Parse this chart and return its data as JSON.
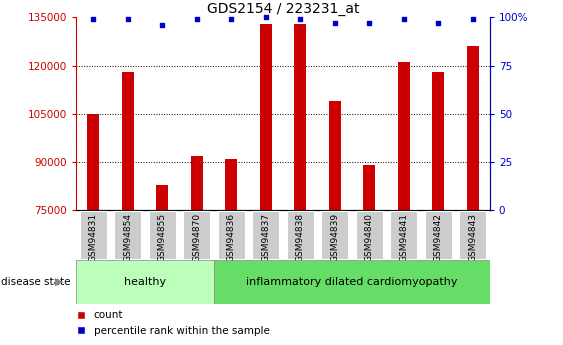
{
  "title": "GDS2154 / 223231_at",
  "samples": [
    "GSM94831",
    "GSM94854",
    "GSM94855",
    "GSM94870",
    "GSM94836",
    "GSM94837",
    "GSM94838",
    "GSM94839",
    "GSM94840",
    "GSM94841",
    "GSM94842",
    "GSM94843"
  ],
  "counts": [
    105000,
    118000,
    83000,
    92000,
    91000,
    133000,
    133000,
    109000,
    89000,
    121000,
    118000,
    126000
  ],
  "percentile_ranks": [
    99,
    99,
    96,
    99,
    99,
    100,
    99,
    97,
    97,
    99,
    97,
    99
  ],
  "bar_color": "#cc0000",
  "dot_color": "#0000cc",
  "ylim_left": [
    75000,
    135000
  ],
  "ylim_right": [
    0,
    100
  ],
  "yticks_left": [
    75000,
    90000,
    105000,
    120000,
    135000
  ],
  "yticks_right": [
    0,
    25,
    50,
    75,
    100
  ],
  "ytick_labels_right": [
    "0",
    "25",
    "50",
    "75",
    "100%"
  ],
  "healthy_count": 4,
  "healthy_label": "healthy",
  "disease_label": "inflammatory dilated cardiomyopathy",
  "disease_state_label": "disease state",
  "legend_count": "count",
  "legend_percentile": "percentile rank within the sample",
  "healthy_color": "#bbffbb",
  "disease_color": "#66dd66",
  "tick_bg_color": "#cccccc",
  "title_fontsize": 10,
  "tick_fontsize": 7.5
}
